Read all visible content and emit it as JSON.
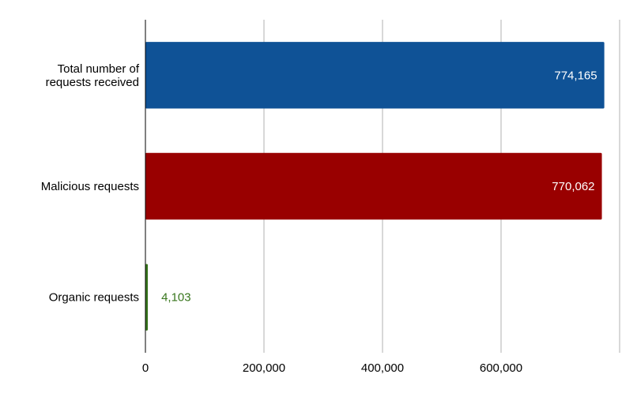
{
  "chart_data": {
    "type": "bar",
    "orientation": "horizontal",
    "title": "",
    "xlabel": "",
    "ylabel": "",
    "categories": [
      [
        "Total number of",
        "requests received"
      ],
      [
        "Malicious requests"
      ],
      [
        "Organic requests"
      ]
    ],
    "values": [
      774165,
      770062,
      4103
    ],
    "value_labels": [
      "774,165",
      "770,062",
      "4,103"
    ],
    "colors": [
      "#0f5296",
      "#990000",
      "#38761d"
    ],
    "data_label_colors": [
      "#ffffff",
      "#ffffff",
      "#38761d"
    ],
    "xlim": [
      0,
      800000
    ],
    "x_ticks": [
      {
        "value": 0,
        "label": "0"
      },
      {
        "value": 200000,
        "label": "200,000"
      },
      {
        "value": 400000,
        "label": "400,000"
      },
      {
        "value": 600000,
        "label": "600,000"
      }
    ],
    "grid": true,
    "legend": "none"
  }
}
